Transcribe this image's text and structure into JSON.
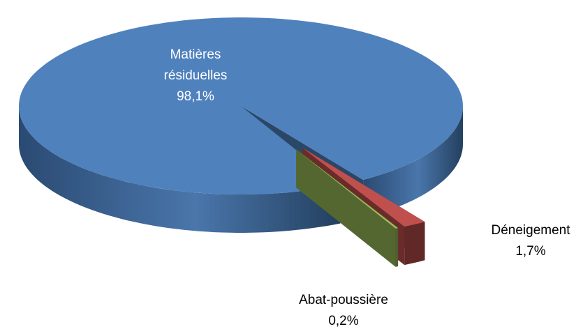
{
  "chart_data": {
    "type": "pie",
    "categories": [
      "Matières résiduelles",
      "Déneigement",
      "Abat-poussière"
    ],
    "values": [
      98.1,
      1.7,
      0.2
    ],
    "value_labels": [
      "98,1%",
      "1,7%",
      "0,2%"
    ],
    "colors": [
      "#4f81bd",
      "#c0504d",
      "#9bbb59"
    ]
  }
}
